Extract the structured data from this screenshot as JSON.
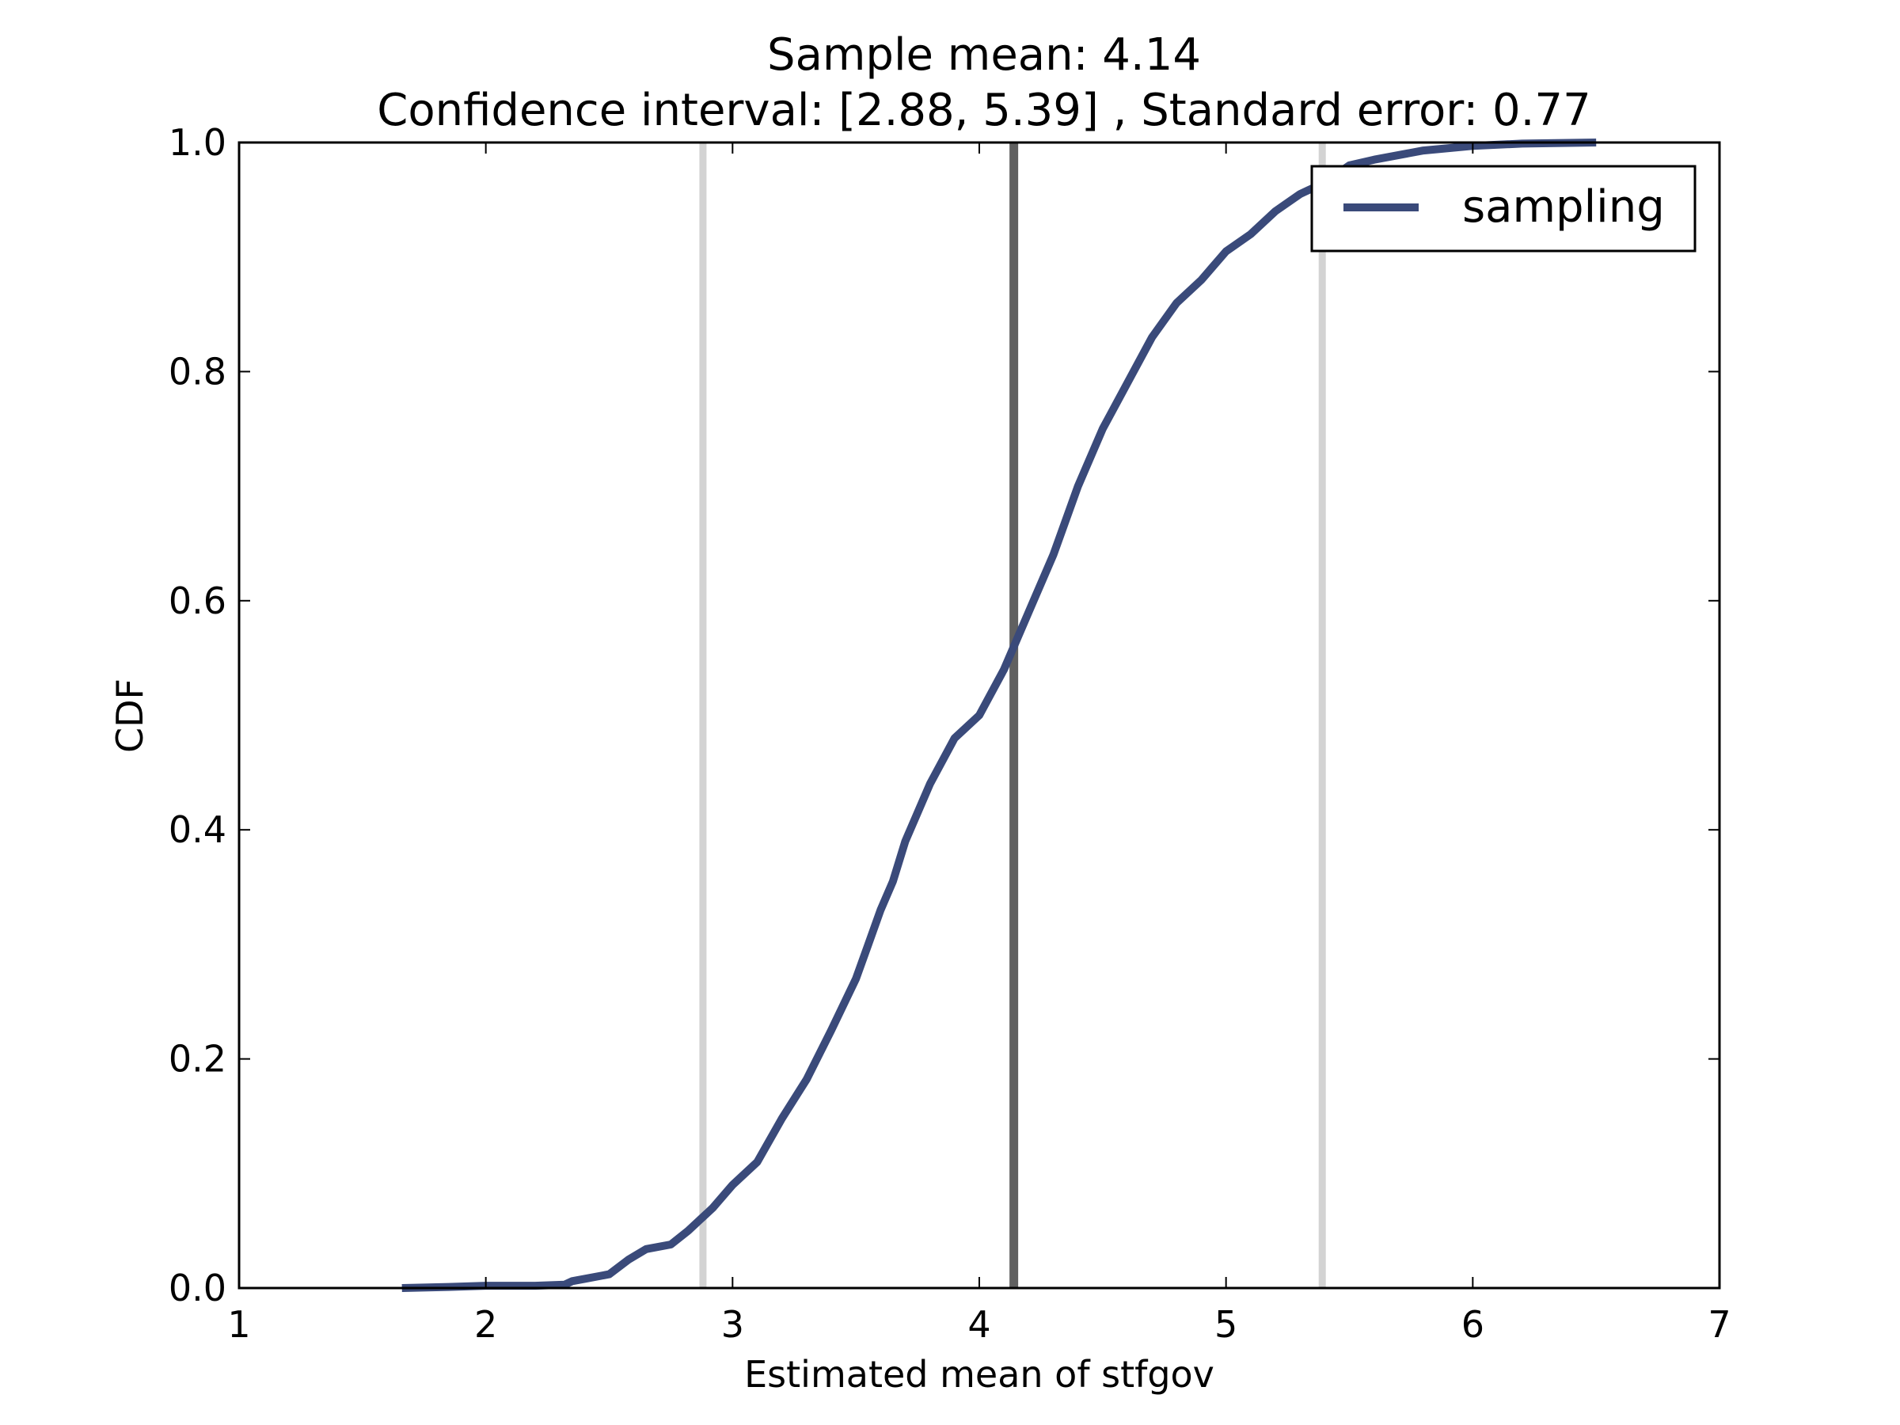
{
  "chart_data": {
    "type": "line",
    "title": "Sample mean: 4.14",
    "subtitle": "Confidence interval: [2.88, 5.39] , Standard error: 0.77",
    "xlabel": "Estimated mean of stfgov",
    "ylabel": "CDF",
    "xlim": [
      1,
      7
    ],
    "ylim": [
      0,
      1
    ],
    "xticks": [
      "1",
      "2",
      "3",
      "4",
      "5",
      "6",
      "7"
    ],
    "yticks": [
      "0.0",
      "0.2",
      "0.4",
      "0.6",
      "0.8",
      "1.0"
    ],
    "grid": false,
    "legend": {
      "placement": "top-right",
      "entries": [
        "sampling"
      ]
    },
    "reference_lines": [
      {
        "kind": "ci-lower",
        "x": 2.88,
        "color": "#d3d3d3"
      },
      {
        "kind": "mean",
        "x": 4.14,
        "color": "#606060"
      },
      {
        "kind": "ci-upper",
        "x": 5.39,
        "color": "#d3d3d3"
      }
    ],
    "series": [
      {
        "name": "sampling",
        "color": "#3a4a7a",
        "x": [
          1.66,
          1.85,
          2.0,
          2.2,
          2.32,
          2.35,
          2.4,
          2.5,
          2.58,
          2.65,
          2.75,
          2.82,
          2.88,
          2.92,
          3.0,
          3.05,
          3.1,
          3.2,
          3.3,
          3.4,
          3.5,
          3.55,
          3.6,
          3.65,
          3.7,
          3.8,
          3.9,
          4.0,
          4.1,
          4.2,
          4.3,
          4.4,
          4.5,
          4.6,
          4.7,
          4.8,
          4.9,
          5.0,
          5.1,
          5.2,
          5.3,
          5.4,
          5.5,
          5.6,
          5.8,
          6.0,
          6.2,
          6.5
        ],
        "y": [
          0.0,
          0.001,
          0.002,
          0.002,
          0.003,
          0.006,
          0.008,
          0.012,
          0.025,
          0.034,
          0.038,
          0.05,
          0.062,
          0.07,
          0.09,
          0.1,
          0.11,
          0.148,
          0.182,
          0.225,
          0.27,
          0.3,
          0.33,
          0.355,
          0.39,
          0.44,
          0.48,
          0.5,
          0.54,
          0.59,
          0.64,
          0.7,
          0.75,
          0.79,
          0.83,
          0.86,
          0.88,
          0.905,
          0.92,
          0.94,
          0.955,
          0.965,
          0.98,
          0.985,
          0.993,
          0.997,
          0.999,
          1.0
        ]
      }
    ]
  }
}
